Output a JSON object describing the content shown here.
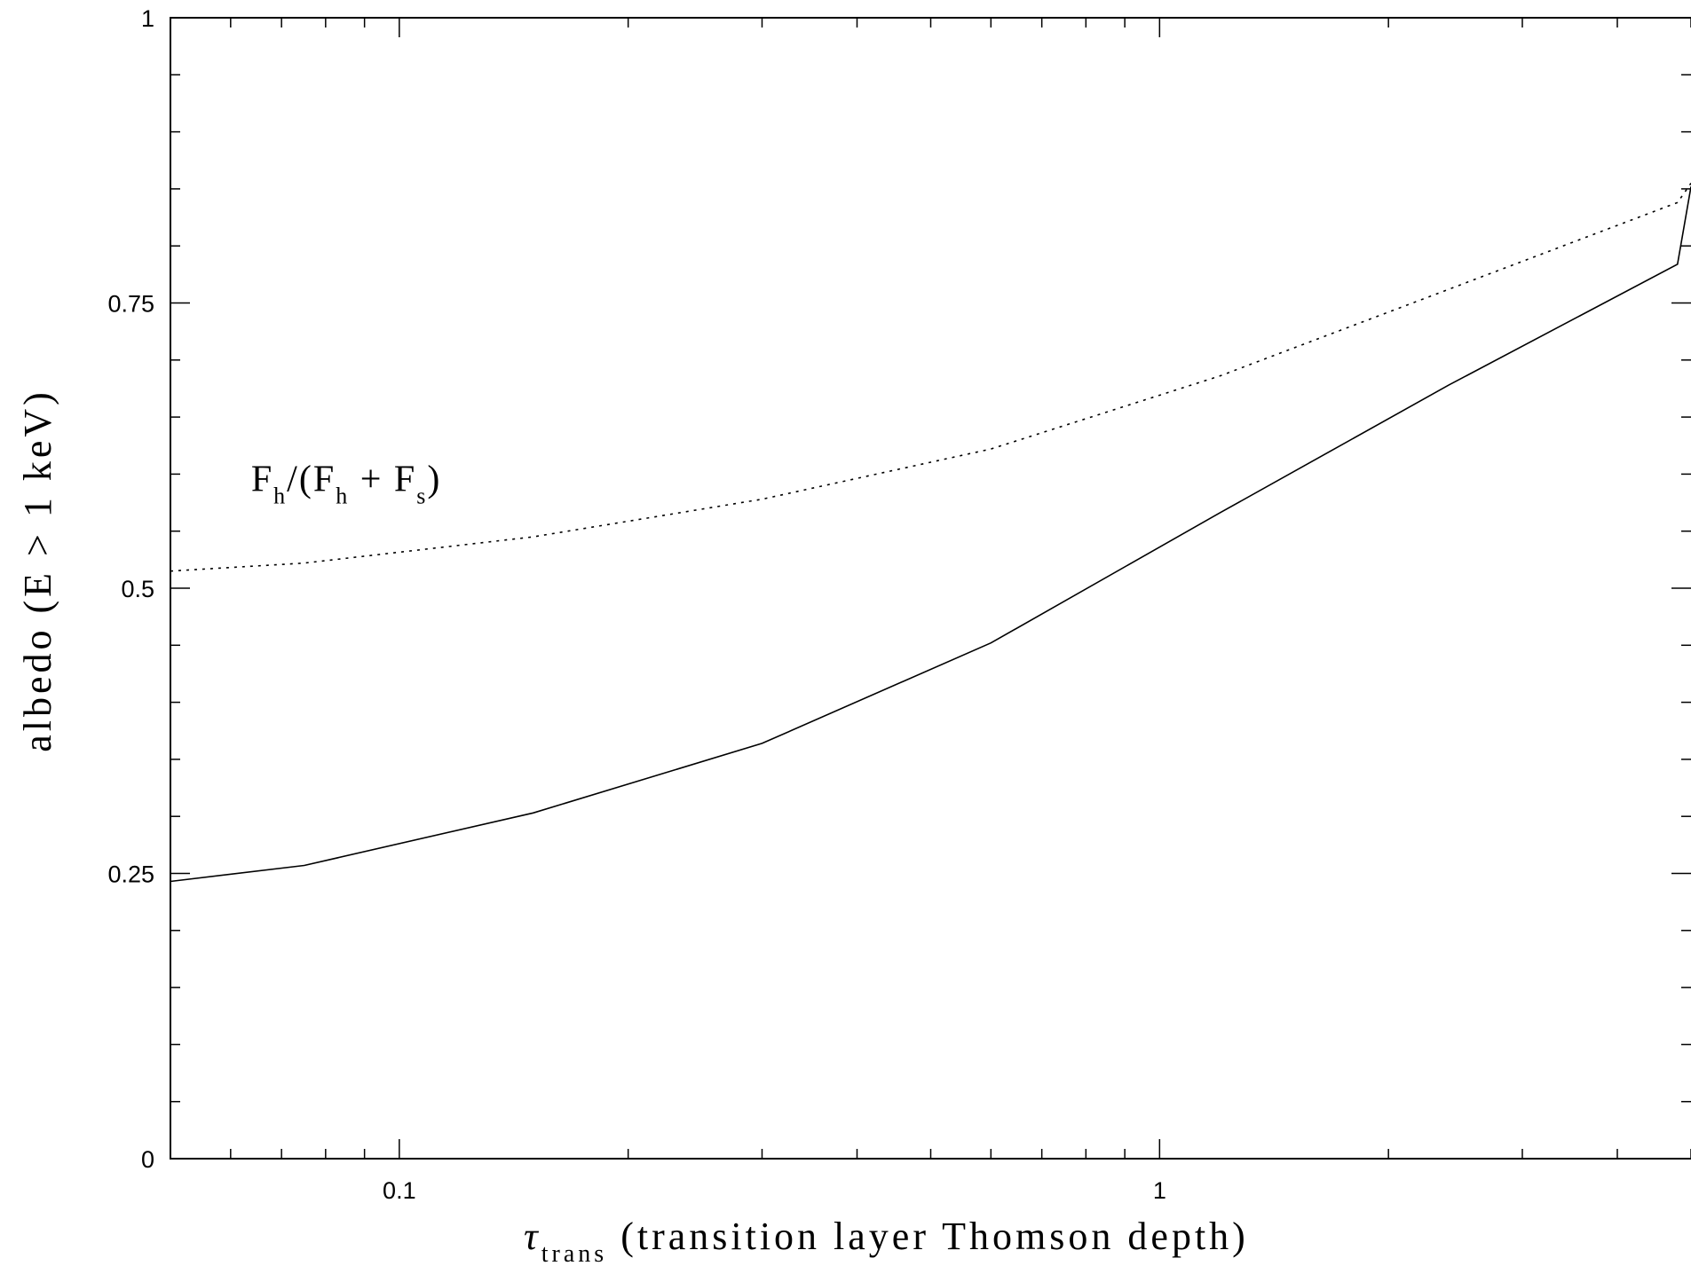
{
  "chart_data": {
    "type": "line",
    "title": "",
    "xlabel": {
      "symbol": "τ",
      "subscript": "trans",
      "text": "(transition layer Thomson depth)"
    },
    "ylabel": "albedo (E > 1 keV)",
    "xscale": "log",
    "xlim": [
      0.05,
      5.0
    ],
    "ylim": [
      0,
      1
    ],
    "xticks": [
      {
        "value": 0.1,
        "label": "0.1"
      },
      {
        "value": 1,
        "label": "1"
      }
    ],
    "yticks": [
      {
        "value": 0,
        "label": "0"
      },
      {
        "value": 0.25,
        "label": "0.25"
      },
      {
        "value": 0.5,
        "label": "0.5"
      },
      {
        "value": 0.75,
        "label": "0.75"
      },
      {
        "value": 1,
        "label": "1"
      }
    ],
    "grid": false,
    "series": [
      {
        "style": "solid",
        "x": [
          0.05,
          0.075,
          0.15,
          0.3,
          0.6,
          1.2,
          2.4,
          4.8,
          5.0
        ],
        "y": [
          0.243,
          0.257,
          0.303,
          0.364,
          0.452,
          0.566,
          0.678,
          0.784,
          0.852
        ]
      },
      {
        "style": "dotted",
        "x": [
          0.05,
          0.075,
          0.15,
          0.3,
          0.6,
          1.2,
          2.4,
          4.8,
          5.0
        ],
        "y": [
          0.515,
          0.522,
          0.545,
          0.578,
          0.622,
          0.686,
          0.762,
          0.838,
          0.855
        ]
      }
    ],
    "annotations": [
      {
        "parts": [
          "F",
          "h",
          "/(F",
          "h",
          " + F",
          "s",
          ")"
        ],
        "x": 0.075,
        "y": 0.585
      }
    ]
  }
}
